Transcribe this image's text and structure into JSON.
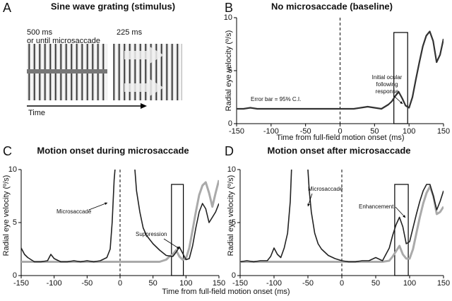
{
  "panel_a": {
    "letter": "A",
    "title": "Sine wave grating (stimulus)",
    "label_500": "500 ms",
    "label_until": "or until microsaccade",
    "label_225": "225 ms",
    "time": "Time"
  },
  "chart_data": [
    {
      "type": "line",
      "letter": "B",
      "title": "No microsaccade (baseline)",
      "ylabel": "Radial eye velocity (º/s)",
      "xlabel": "Time from full-field motion onset (ms)",
      "xlim": [
        -150,
        150
      ],
      "ylim": [
        0,
        10
      ],
      "xticks": [
        -150,
        -100,
        -50,
        0,
        50,
        100,
        150
      ],
      "yticks": [
        0,
        5,
        10
      ],
      "vline": 0,
      "window": {
        "x": [
          78,
          98
        ],
        "top": 8.6
      },
      "annotations": [
        "Initial ocular",
        "following",
        "response",
        "Error bar = 95% C.I."
      ],
      "series": [
        {
          "color": "#333333",
          "width": 2.2,
          "x": [
            -150,
            -140,
            -130,
            -120,
            -110,
            -100,
            -90,
            -80,
            -70,
            -60,
            -50,
            -40,
            -30,
            -20,
            -10,
            0,
            10,
            20,
            30,
            40,
            50,
            60,
            70,
            75,
            80,
            85,
            90,
            95,
            100,
            105,
            110,
            115,
            120,
            125,
            130,
            135,
            140,
            145,
            150
          ],
          "values": [
            1.4,
            1.4,
            1.5,
            1.4,
            1.4,
            1.4,
            1.4,
            1.4,
            1.4,
            1.4,
            1.4,
            1.4,
            1.4,
            1.4,
            1.4,
            1.4,
            1.4,
            1.4,
            1.5,
            1.6,
            1.5,
            1.4,
            1.8,
            2.1,
            2.6,
            3.0,
            2.4,
            1.7,
            1.5,
            2.5,
            4.2,
            5.8,
            7.3,
            8.3,
            8.7,
            7.8,
            5.8,
            6.5,
            8.0
          ]
        }
      ]
    },
    {
      "type": "line",
      "letter": "C",
      "title": "Motion onset during microsaccade",
      "ylabel": "Radial eye velocity (º/s)",
      "xlabel": "Time from full-field motion onset (ms)",
      "xlim": [
        -150,
        150
      ],
      "ylim": [
        0,
        10
      ],
      "xticks": [
        -150,
        -100,
        -50,
        0,
        50,
        100,
        150
      ],
      "yticks": [
        0,
        5,
        10
      ],
      "vline": 0,
      "window": {
        "x": [
          78,
          96
        ],
        "top": 8.6
      },
      "annotations": [
        "Microsaccade",
        "Suppression"
      ],
      "series": [
        {
          "color": "#aaaaaa",
          "width": 3,
          "x": [
            -150,
            -140,
            -130,
            -120,
            -110,
            -100,
            -90,
            -80,
            -70,
            -60,
            -50,
            -40,
            -30,
            -20,
            -10,
            0,
            10,
            20,
            30,
            40,
            50,
            60,
            70,
            75,
            80,
            85,
            90,
            95,
            100,
            105,
            110,
            115,
            120,
            125,
            130,
            135,
            140,
            145,
            150
          ],
          "values": [
            1.3,
            1.3,
            1.3,
            1.3,
            1.3,
            1.3,
            1.3,
            1.3,
            1.3,
            1.3,
            1.3,
            1.3,
            1.3,
            1.3,
            1.3,
            1.3,
            1.3,
            1.3,
            1.3,
            1.3,
            1.3,
            1.3,
            1.5,
            1.8,
            2.0,
            2.4,
            1.8,
            1.5,
            1.6,
            2.6,
            4.3,
            6.0,
            7.6,
            8.5,
            8.8,
            7.8,
            6.5,
            7.8,
            9.0
          ]
        },
        {
          "color": "#222222",
          "width": 1.6,
          "x": [
            -150,
            -145,
            -140,
            -130,
            -120,
            -110,
            -105,
            -100,
            -90,
            -80,
            -70,
            -60,
            -50,
            -40,
            -30,
            -20,
            -15,
            -12,
            -9,
            -5,
            0,
            20,
            25,
            30,
            35,
            40,
            50,
            60,
            70,
            80,
            85,
            90,
            95,
            100,
            105,
            110,
            115,
            120,
            125,
            130,
            135,
            140,
            145,
            150
          ],
          "values": [
            2.6,
            2.0,
            1.7,
            1.3,
            1.3,
            1.4,
            2.0,
            1.6,
            1.3,
            1.3,
            1.4,
            1.3,
            1.4,
            1.3,
            1.4,
            1.7,
            2.5,
            5,
            9,
            12,
            null,
            12,
            8,
            6,
            4.5,
            3.8,
            3.0,
            2.4,
            1.9,
            1.8,
            2.2,
            2.7,
            2.1,
            1.5,
            1.6,
            2.8,
            4.5,
            6.0,
            6.8,
            6.3,
            5.0,
            5.5,
            6.0,
            6.8
          ]
        }
      ]
    },
    {
      "type": "line",
      "letter": "D",
      "title": "Motion onset after microsaccade",
      "ylabel": "Radial eye velocity (º/s)",
      "xlim": [
        -150,
        150
      ],
      "ylim": [
        0,
        10
      ],
      "xticks": [
        -150,
        -100,
        -50,
        0,
        50,
        100,
        150
      ],
      "yticks": [
        0,
        5,
        10
      ],
      "vline": 0,
      "window": {
        "x": [
          78,
          98
        ],
        "top": 8.6
      },
      "annotations": [
        "Microsaccade",
        "Enhancement"
      ],
      "series": [
        {
          "color": "#aaaaaa",
          "width": 3,
          "x": [
            -150,
            -140,
            -130,
            -120,
            -110,
            -100,
            -90,
            -80,
            -70,
            -60,
            -50,
            -40,
            -30,
            -20,
            -10,
            0,
            10,
            20,
            30,
            40,
            50,
            60,
            70,
            75,
            80,
            85,
            90,
            95,
            100,
            105,
            110,
            115,
            120,
            125,
            130,
            135,
            140,
            145,
            150
          ],
          "values": [
            1.3,
            1.3,
            1.3,
            1.3,
            1.3,
            1.3,
            1.3,
            1.3,
            1.3,
            1.3,
            1.3,
            1.3,
            1.3,
            1.3,
            1.3,
            1.3,
            1.3,
            1.3,
            1.3,
            1.3,
            1.3,
            1.3,
            1.4,
            1.8,
            2.3,
            2.8,
            2.0,
            1.6,
            1.6,
            2.5,
            4.0,
            5.5,
            6.8,
            7.8,
            8.4,
            7.5,
            5.8,
            6.0,
            6.5
          ]
        },
        {
          "color": "#222222",
          "width": 1.6,
          "x": [
            -150,
            -140,
            -130,
            -120,
            -110,
            -105,
            -100,
            -95,
            -90,
            -85,
            -80,
            -76,
            -73,
            -70,
            -60,
            -52,
            -48,
            -45,
            -40,
            -35,
            -30,
            -20,
            -10,
            0,
            10,
            20,
            30,
            40,
            50,
            60,
            70,
            75,
            80,
            85,
            90,
            95,
            100,
            105,
            110,
            115,
            120,
            125,
            130,
            135,
            140,
            145,
            150
          ],
          "values": [
            1.3,
            1.4,
            1.3,
            1.4,
            1.4,
            1.8,
            2.6,
            2.0,
            1.7,
            2.6,
            4,
            7,
            12,
            null,
            null,
            12,
            8,
            6,
            4,
            3,
            2.5,
            1.9,
            1.6,
            1.4,
            1.3,
            1.3,
            1.4,
            1.4,
            1.7,
            1.4,
            2.6,
            3.8,
            4.8,
            5.5,
            4.6,
            3.0,
            3.2,
            4.5,
            5.8,
            7.0,
            8.0,
            8.6,
            8.6,
            7.5,
            6.2,
            7.0,
            8.0
          ]
        }
      ]
    }
  ]
}
